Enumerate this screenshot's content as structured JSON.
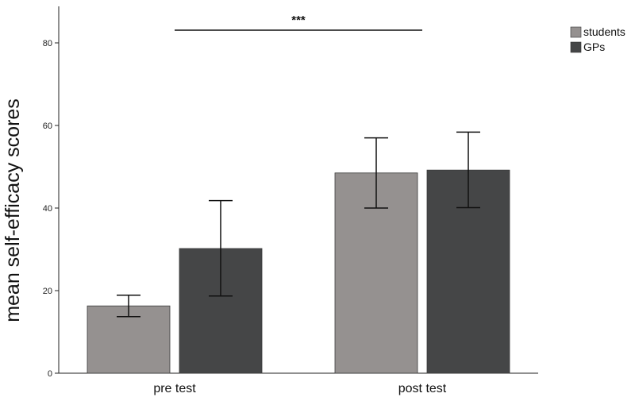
{
  "chart_data": {
    "type": "bar",
    "title": "",
    "xlabel": "",
    "ylabel": "mean self-efficacy scores",
    "categories": [
      "pre test",
      "post test"
    ],
    "ylim": [
      0,
      88
    ],
    "yticks": [
      0,
      20,
      40,
      60,
      80
    ],
    "series": [
      {
        "name": "students",
        "color": "#959190",
        "values": [
          16.3,
          48.5
        ],
        "error_low": [
          13.7,
          40.0
        ],
        "error_high": [
          18.9,
          57.0
        ]
      },
      {
        "name": "GPs",
        "color": "#454647",
        "values": [
          30.2,
          49.2
        ],
        "error_low": [
          18.7,
          40.1
        ],
        "error_high": [
          41.8,
          58.4
        ]
      }
    ],
    "significance": {
      "label": "***",
      "from": "pre test",
      "to": "post test"
    },
    "legend": {
      "position": "top-right"
    },
    "grid": false
  }
}
